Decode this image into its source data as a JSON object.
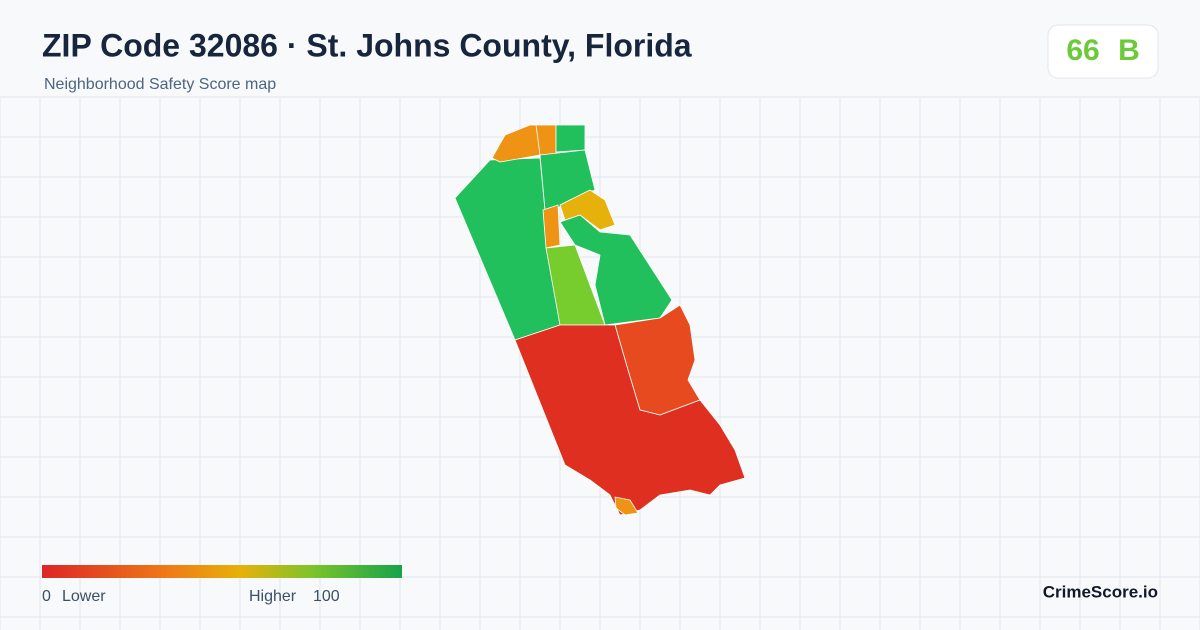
{
  "header": {
    "title": "ZIP Code 32086 · St. Johns County, Florida",
    "subtitle": "Neighborhood Safety Score map"
  },
  "score": {
    "value": 66,
    "grade": "B"
  },
  "legend": {
    "min": 0,
    "min_label": "Lower",
    "max_label": "Higher",
    "max": 100
  },
  "brand": "CrimeScore.io"
}
